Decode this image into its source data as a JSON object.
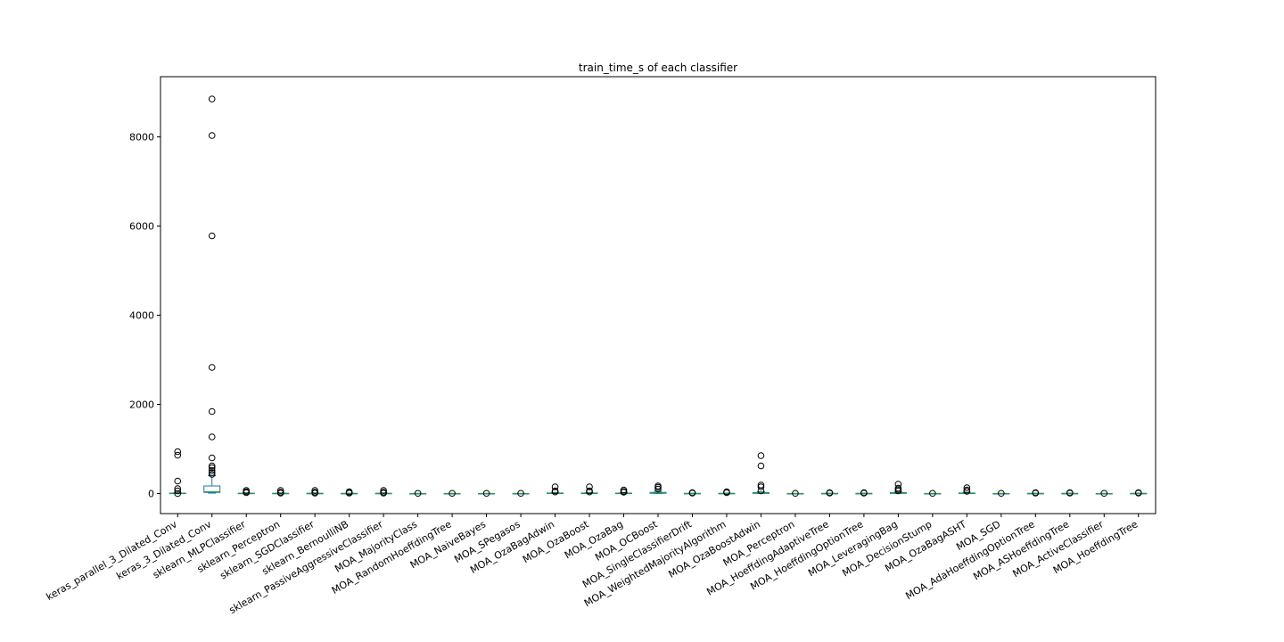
{
  "chart_data": {
    "type": "box",
    "title": "train_time_s of each classifier",
    "xlabel": "",
    "ylabel": "",
    "ylim": [
      -450,
      9350
    ],
    "yticks": [
      0,
      2000,
      4000,
      6000,
      8000
    ],
    "grid": false,
    "legend": "none",
    "colors": {
      "box": "#1f77b4",
      "whisker": "#1f77b4",
      "median": "#2ca02c",
      "flier": "#000000",
      "axes": "#000000"
    },
    "categories": [
      "keras_parallel_3_Dilated_Conv",
      "keras_3_Dilated_Conv",
      "sklearn_MLPClassifier",
      "sklearn_Perceptron",
      "sklearn_SGDClassifier",
      "sklearn_BernoulliNB",
      "sklearn_PassiveAggressiveClassifier",
      "MOA_MajorityClass",
      "MOA_RandomHoeffdingTree",
      "MOA_NaiveBayes",
      "MOA_SPegasos",
      "MOA_OzaBagAdwin",
      "MOA_OzaBoost",
      "MOA_OzaBag",
      "MOA_OCBoost",
      "MOA_SingleClassifierDrift",
      "MOA_WeightedMajorityAlgorithm",
      "MOA_OzaBoostAdwin",
      "MOA_Perceptron",
      "MOA_HoeffdingAdaptiveTree",
      "MOA_HoeffdingOptionTree",
      "MOA_LeveragingBag",
      "MOA_DecisionStump",
      "MOA_OzaBagASHT",
      "MOA_SGD",
      "MOA_AdaHoeffdingOptionTree",
      "MOA_ASHoeffdingTree",
      "MOA_ActiveClassifier",
      "MOA_HoeffdingTree"
    ],
    "boxes": [
      {
        "whislo": 0,
        "q1": 2,
        "med": 5,
        "q3": 10,
        "whishi": 20,
        "fliers": [
          940,
          860,
          280,
          110,
          60,
          0
        ]
      },
      {
        "whislo": 10,
        "q1": 25,
        "med": 40,
        "q3": 170,
        "whishi": 400,
        "fliers": [
          8850,
          8030,
          5780,
          2830,
          1840,
          1270,
          800,
          620,
          580,
          520,
          470,
          430
        ]
      },
      {
        "whislo": 0,
        "q1": 1,
        "med": 3,
        "q3": 8,
        "whishi": 15,
        "fliers": [
          70,
          40,
          20
        ]
      },
      {
        "whislo": 0,
        "q1": 1,
        "med": 2,
        "q3": 6,
        "whishi": 12,
        "fliers": [
          70,
          30,
          10
        ]
      },
      {
        "whislo": 0,
        "q1": 1,
        "med": 2,
        "q3": 6,
        "whishi": 12,
        "fliers": [
          70,
          30,
          10
        ]
      },
      {
        "whislo": 0,
        "q1": 1,
        "med": 2,
        "q3": 4,
        "whishi": 8,
        "fliers": [
          40,
          20,
          10
        ]
      },
      {
        "whislo": 0,
        "q1": 1,
        "med": 2,
        "q3": 6,
        "whishi": 12,
        "fliers": [
          70,
          30,
          10
        ]
      },
      {
        "whislo": 0,
        "q1": 1,
        "med": 1,
        "q3": 2,
        "whishi": 3,
        "fliers": [
          5
        ]
      },
      {
        "whislo": 0,
        "q1": 1,
        "med": 1,
        "q3": 2,
        "whishi": 3,
        "fliers": [
          5
        ]
      },
      {
        "whislo": 0,
        "q1": 1,
        "med": 1,
        "q3": 2,
        "whishi": 3,
        "fliers": [
          5
        ]
      },
      {
        "whislo": 0,
        "q1": 1,
        "med": 1,
        "q3": 2,
        "whishi": 3,
        "fliers": [
          5
        ]
      },
      {
        "whislo": 0,
        "q1": 2,
        "med": 5,
        "q3": 12,
        "whishi": 25,
        "fliers": [
          150,
          60,
          35
        ]
      },
      {
        "whislo": 0,
        "q1": 2,
        "med": 5,
        "q3": 12,
        "whishi": 25,
        "fliers": [
          150,
          60,
          35
        ]
      },
      {
        "whislo": 0,
        "q1": 2,
        "med": 4,
        "q3": 10,
        "whishi": 20,
        "fliers": [
          80,
          45,
          30
        ]
      },
      {
        "whislo": 0,
        "q1": 5,
        "med": 12,
        "q3": 25,
        "whishi": 50,
        "fliers": [
          170,
          140,
          100
        ]
      },
      {
        "whislo": 0,
        "q1": 1,
        "med": 2,
        "q3": 4,
        "whishi": 8,
        "fliers": [
          20,
          10
        ]
      },
      {
        "whislo": 0,
        "q1": 1,
        "med": 2,
        "q3": 5,
        "whishi": 10,
        "fliers": [
          40,
          20
        ]
      },
      {
        "whislo": 0,
        "q1": 3,
        "med": 8,
        "q3": 20,
        "whishi": 40,
        "fliers": [
          850,
          620,
          190,
          150,
          60
        ]
      },
      {
        "whislo": 0,
        "q1": 1,
        "med": 1,
        "q3": 2,
        "whishi": 3,
        "fliers": [
          5
        ]
      },
      {
        "whislo": 0,
        "q1": 1,
        "med": 2,
        "q3": 4,
        "whishi": 8,
        "fliers": [
          20,
          10
        ]
      },
      {
        "whislo": 0,
        "q1": 1,
        "med": 2,
        "q3": 4,
        "whishi": 8,
        "fliers": [
          20,
          10
        ]
      },
      {
        "whislo": 0,
        "q1": 3,
        "med": 8,
        "q3": 20,
        "whishi": 35,
        "fliers": [
          210,
          120,
          90,
          60
        ]
      },
      {
        "whislo": 0,
        "q1": 1,
        "med": 1,
        "q3": 2,
        "whishi": 3,
        "fliers": [
          5
        ]
      },
      {
        "whislo": 0,
        "q1": 2,
        "med": 5,
        "q3": 12,
        "whishi": 25,
        "fliers": [
          130,
          80,
          50
        ]
      },
      {
        "whislo": 0,
        "q1": 1,
        "med": 1,
        "q3": 2,
        "whishi": 3,
        "fliers": [
          5
        ]
      },
      {
        "whislo": 0,
        "q1": 1,
        "med": 2,
        "q3": 4,
        "whishi": 8,
        "fliers": [
          20,
          10
        ]
      },
      {
        "whislo": 0,
        "q1": 1,
        "med": 2,
        "q3": 4,
        "whishi": 8,
        "fliers": [
          20,
          10
        ]
      },
      {
        "whislo": 0,
        "q1": 1,
        "med": 1,
        "q3": 2,
        "whishi": 3,
        "fliers": [
          5
        ]
      },
      {
        "whislo": 0,
        "q1": 1,
        "med": 2,
        "q3": 4,
        "whishi": 8,
        "fliers": [
          20,
          10
        ]
      }
    ]
  }
}
